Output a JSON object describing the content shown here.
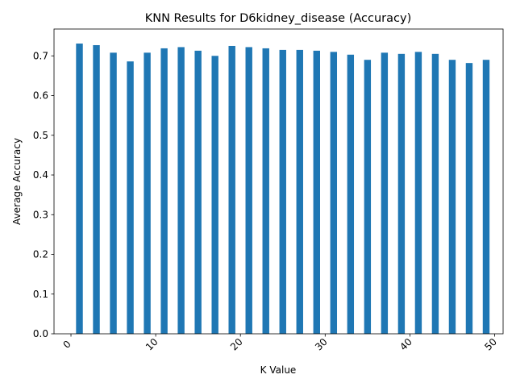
{
  "chart_data": {
    "type": "bar",
    "title": "KNN Results for D6kidney_disease (Accuracy)",
    "xlabel": "K Value",
    "ylabel": "Average Accuracy",
    "x": [
      1,
      3,
      5,
      7,
      9,
      11,
      13,
      15,
      17,
      19,
      21,
      23,
      25,
      27,
      29,
      31,
      33,
      35,
      37,
      39,
      41,
      43,
      45,
      47,
      49
    ],
    "values": [
      0.731,
      0.727,
      0.708,
      0.686,
      0.708,
      0.719,
      0.722,
      0.713,
      0.7,
      0.725,
      0.722,
      0.719,
      0.715,
      0.715,
      0.713,
      0.71,
      0.703,
      0.69,
      0.708,
      0.705,
      0.71,
      0.705,
      0.69,
      0.682,
      0.69
    ],
    "xlim": [
      -2,
      51
    ],
    "ylim": [
      0,
      0.7676
    ],
    "xticks": [
      0,
      10,
      20,
      30,
      40,
      50
    ],
    "xtick_labels": [
      "0",
      "10",
      "20",
      "30",
      "40",
      "50"
    ],
    "yticks": [
      0,
      0.1,
      0.2,
      0.3,
      0.4,
      0.5,
      0.6,
      0.7
    ],
    "ytick_labels": [
      "0.0",
      "0.1",
      "0.2",
      "0.3",
      "0.4",
      "0.5",
      "0.6",
      "0.7"
    ],
    "xtick_rotation": 45,
    "grid": false,
    "legend": "none",
    "bar_color": "#1f77b4"
  }
}
